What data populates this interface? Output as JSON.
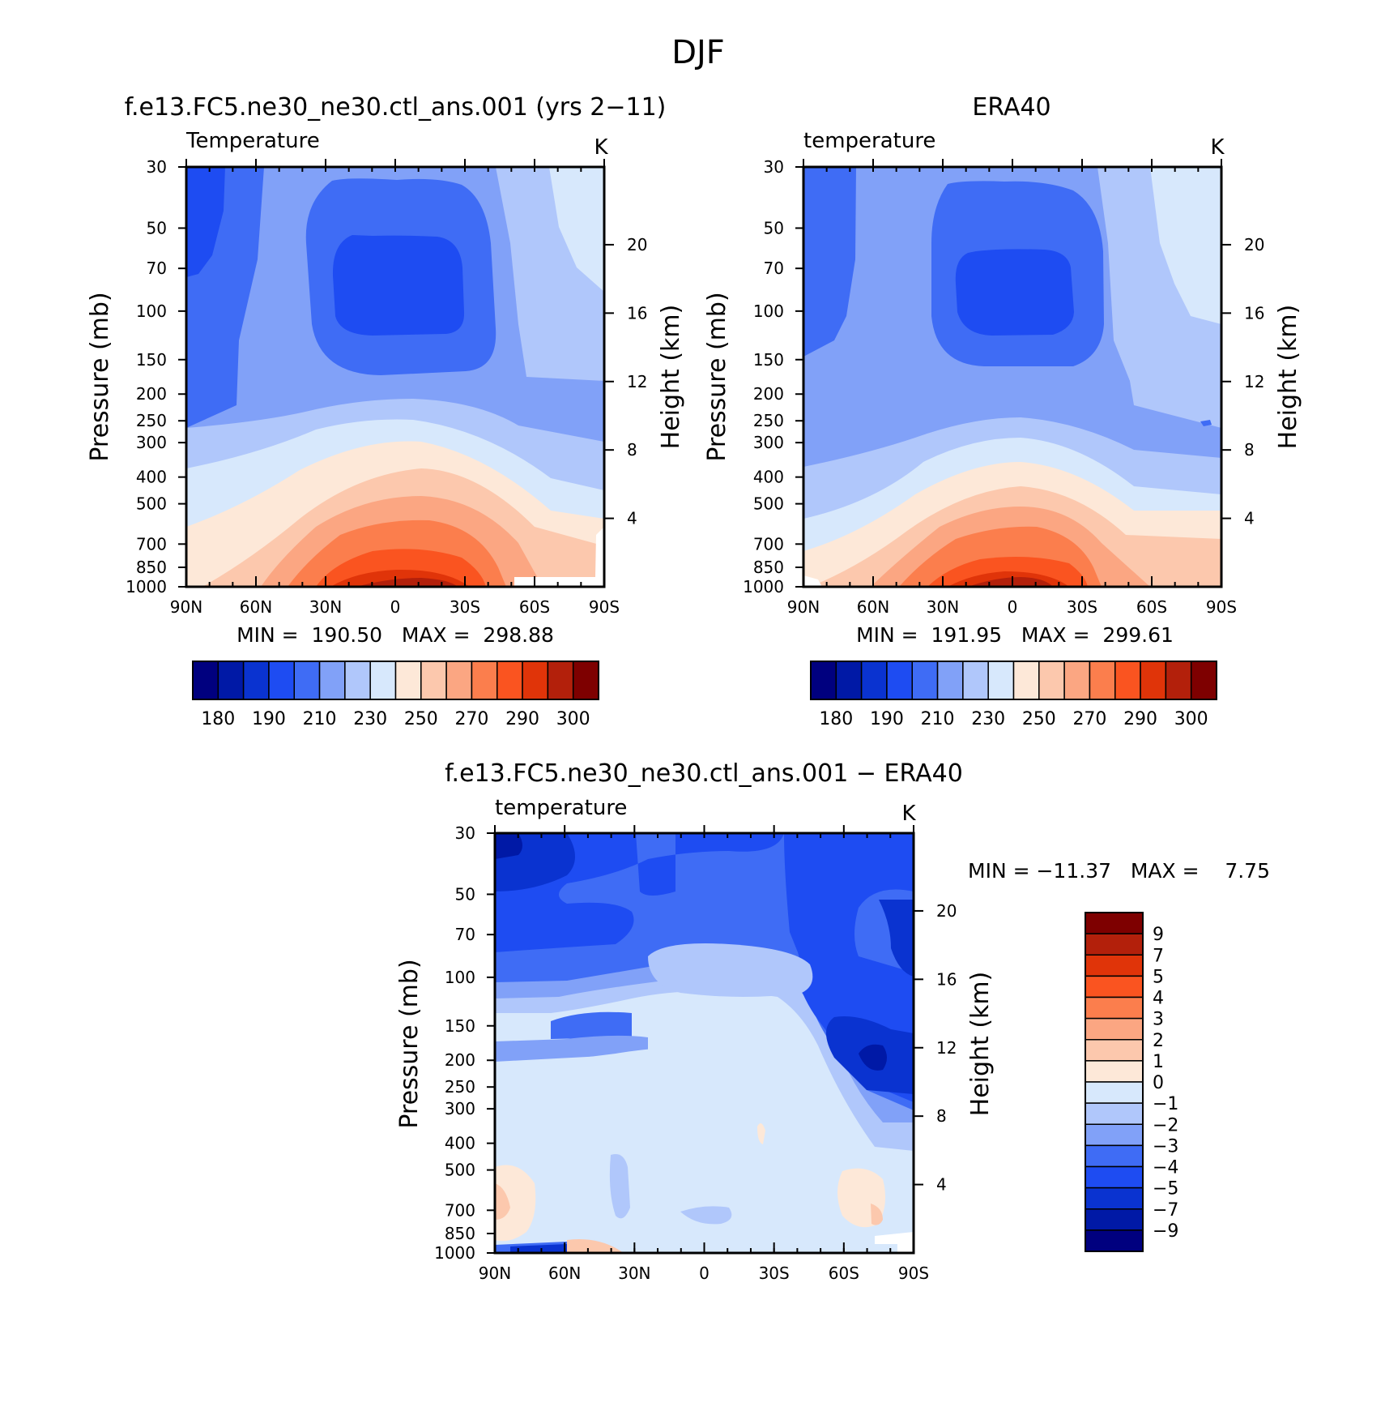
{
  "main_title": "DJF",
  "colors": {
    "temp_levels": [
      "#00007f",
      "#0019a6",
      "#0a33d0",
      "#1e4cf2",
      "#3f6cf5",
      "#81a1f8",
      "#b0c7fb",
      "#d7e8fc",
      "#fde8d8",
      "#fcc8ad",
      "#fba682",
      "#fb7e4d",
      "#fa5420",
      "#e03409",
      "#b3200b",
      "#7e0000"
    ],
    "diff_levels": [
      "#00007f",
      "#0019a6",
      "#0a33d0",
      "#1e4cf2",
      "#3f6cf5",
      "#81a1f8",
      "#b0c7fb",
      "#d7e8fc",
      "#fde8d8",
      "#fcc8ad",
      "#fba682",
      "#fb7e4d",
      "#fa5420",
      "#e03409",
      "#b3200b",
      "#7e0000"
    ]
  },
  "chart_data": [
    {
      "type": "contour",
      "title": "f.e13.FC5.ne30_ne30.ctl_ans.001 (yrs 2−11)",
      "left_label": "Temperature",
      "units": "K",
      "ylabel": "Pressure (mb)",
      "ylabel_right": "Height (km)",
      "x_ticks": [
        "90N",
        "60N",
        "30N",
        "0",
        "30S",
        "60S",
        "90S"
      ],
      "y_ticks": [
        "30",
        "50",
        "70",
        "100",
        "150",
        "200",
        "250",
        "300",
        "400",
        "500",
        "700",
        "850",
        "1000"
      ],
      "y_ticks_right": [
        "20",
        "16",
        "12",
        "8",
        "4"
      ],
      "stats": "MIN =  190.50   MAX =  298.88",
      "min": 190.5,
      "max": 298.88,
      "colorbar_labels": [
        "180",
        "190",
        "210",
        "230",
        "250",
        "270",
        "290",
        "300"
      ]
    },
    {
      "type": "contour",
      "title": "ERA40",
      "left_label": "temperature",
      "units": "K",
      "ylabel": "Pressure (mb)",
      "ylabel_right": "Height (km)",
      "x_ticks": [
        "90N",
        "60N",
        "30N",
        "0",
        "30S",
        "60S",
        "90S"
      ],
      "y_ticks": [
        "30",
        "50",
        "70",
        "100",
        "150",
        "200",
        "250",
        "300",
        "400",
        "500",
        "700",
        "850",
        "1000"
      ],
      "y_ticks_right": [
        "20",
        "16",
        "12",
        "8",
        "4"
      ],
      "stats": "MIN =  191.95   MAX =  299.61",
      "min": 191.95,
      "max": 299.61,
      "colorbar_labels": [
        "180",
        "190",
        "210",
        "230",
        "250",
        "270",
        "290",
        "300"
      ]
    },
    {
      "type": "contour",
      "title": "f.e13.FC5.ne30_ne30.ctl_ans.001 − ERA40",
      "left_label": "temperature",
      "units": "K",
      "ylabel": "Pressure (mb)",
      "ylabel_right": "Height (km)",
      "x_ticks": [
        "90N",
        "60N",
        "30N",
        "0",
        "30S",
        "60S",
        "90S"
      ],
      "y_ticks": [
        "30",
        "50",
        "70",
        "100",
        "150",
        "200",
        "250",
        "300",
        "400",
        "500",
        "700",
        "850",
        "1000"
      ],
      "y_ticks_right": [
        "20",
        "16",
        "12",
        "8",
        "4"
      ],
      "stats": "MIN = −11.37   MAX =    7.75",
      "min": -11.37,
      "max": 7.75,
      "colorbar_labels": [
        "9",
        "7",
        "5",
        "4",
        "3",
        "2",
        "1",
        "0",
        "−1",
        "−2",
        "−3",
        "−4",
        "−5",
        "−7",
        "−9"
      ]
    }
  ]
}
